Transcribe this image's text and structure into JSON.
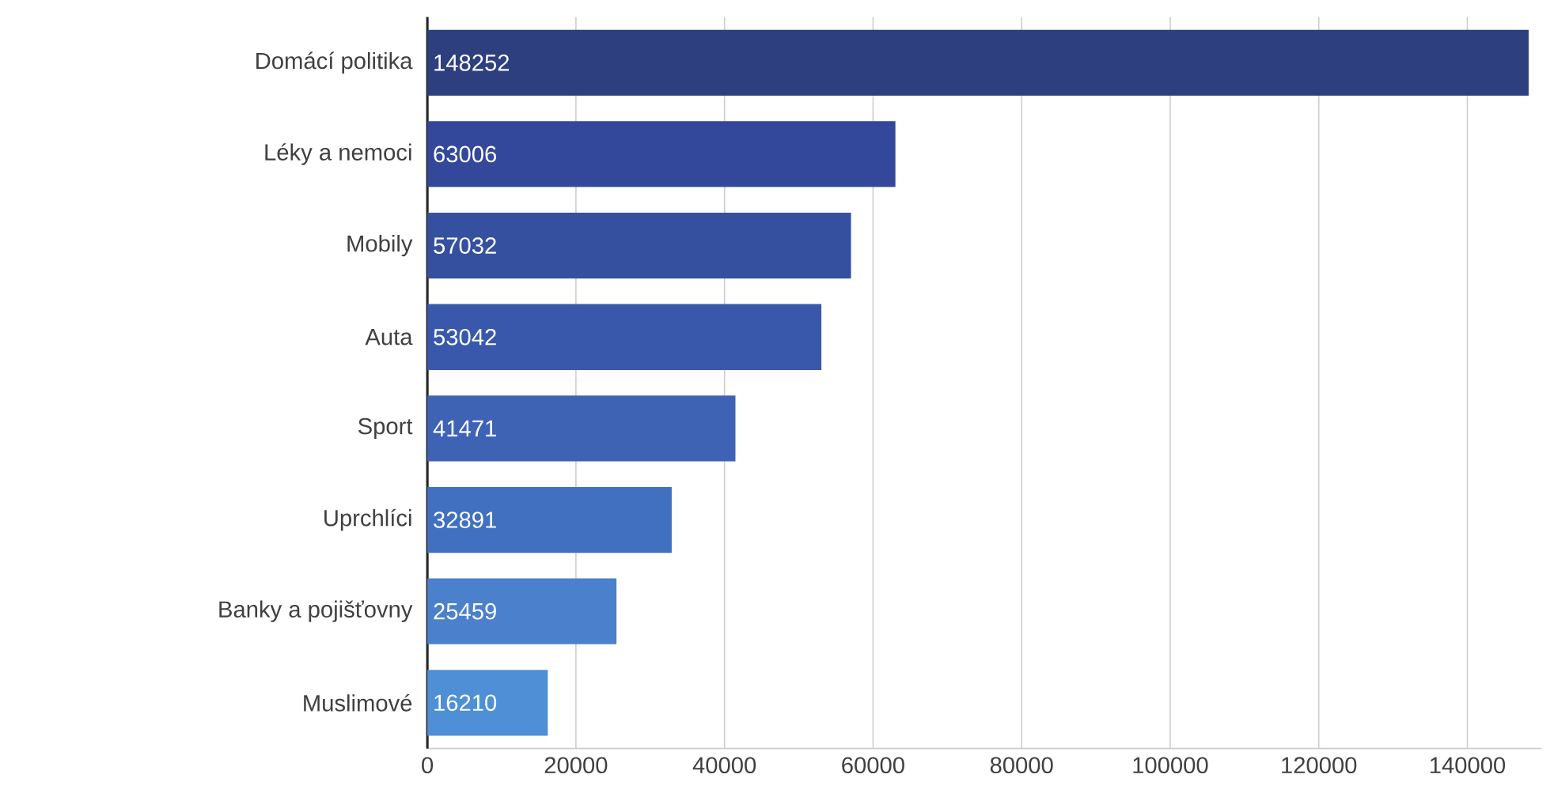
{
  "chart_data": {
    "type": "bar",
    "orientation": "horizontal",
    "categories": [
      "Domácí politika",
      "Léky a nemoci",
      "Mobily",
      "Auta",
      "Sport",
      "Uprchlíci",
      "Banky a pojišťovny",
      "Muslimové"
    ],
    "values": [
      148252,
      63006,
      57032,
      53042,
      41471,
      32891,
      25459,
      16210
    ],
    "colors": [
      "#2e3f7f",
      "#33489a",
      "#3650a0",
      "#3a58ab",
      "#3e63b5",
      "#4270c0",
      "#4a80cc",
      "#4f8fd6"
    ],
    "xlim": [
      0,
      150000
    ],
    "xticks": [
      0,
      20000,
      40000,
      60000,
      80000,
      100000,
      120000,
      140000
    ],
    "grid": "x",
    "data_labels": true
  }
}
